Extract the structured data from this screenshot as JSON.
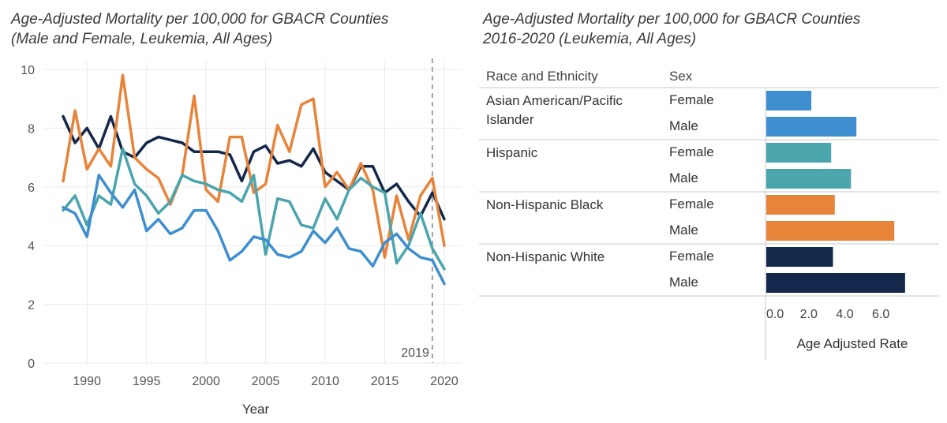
{
  "left_title": {
    "line1": "Age-Adjusted Mortality per 100,000 for GBACR Counties",
    "line2": "(Male and Female, Leukemia, All Ages)"
  },
  "right_title": {
    "line1": "Age-Adjusted Mortality per 100,000 for GBACR Counties",
    "line2": "2016-2020 (Leukemia, All Ages)"
  },
  "colors": {
    "navy": "#14284b",
    "orange": "#e8843a",
    "teal": "#4aa5ac",
    "blue": "#3e8ed0",
    "grid": "#eaeaea",
    "refline": "#a3a3a3"
  },
  "chart_data": [
    {
      "type": "line",
      "xlabel": "Year",
      "ylabel": "",
      "xlim": [
        1986,
        2021
      ],
      "ylim": [
        0,
        10
      ],
      "x_ticks": [
        1990,
        1995,
        2000,
        2005,
        2010,
        2015,
        2020
      ],
      "y_ticks": [
        0,
        2,
        4,
        6,
        8,
        10
      ],
      "reference_line": {
        "x": 2019,
        "label": "2019"
      },
      "x": [
        1988,
        1989,
        1990,
        1991,
        1992,
        1993,
        1994,
        1995,
        1996,
        1997,
        1998,
        1999,
        2000,
        2001,
        2002,
        2003,
        2004,
        2005,
        2006,
        2007,
        2008,
        2009,
        2010,
        2011,
        2012,
        2013,
        2014,
        2015,
        2016,
        2017,
        2018,
        2019,
        2020
      ],
      "series": [
        {
          "name": "navy",
          "color": "#14284b",
          "values": [
            8.4,
            7.5,
            8.0,
            7.3,
            8.4,
            7.2,
            7.0,
            7.5,
            7.7,
            7.6,
            7.5,
            7.2,
            7.2,
            7.2,
            7.1,
            6.2,
            7.2,
            7.4,
            6.8,
            6.9,
            6.7,
            7.3,
            6.5,
            6.2,
            5.9,
            6.7,
            6.7,
            5.8,
            6.1,
            5.5,
            5.0,
            5.8,
            4.9
          ]
        },
        {
          "name": "orange",
          "color": "#e8843a",
          "values": [
            6.2,
            8.6,
            6.6,
            7.3,
            6.7,
            9.8,
            7.0,
            6.6,
            6.3,
            5.4,
            6.4,
            9.1,
            5.9,
            5.5,
            7.7,
            7.7,
            5.8,
            6.1,
            8.1,
            7.2,
            8.8,
            9.0,
            6.0,
            6.5,
            5.9,
            6.8,
            5.9,
            3.6,
            5.7,
            4.2,
            5.7,
            6.3,
            4.0
          ]
        },
        {
          "name": "teal",
          "color": "#4aa5ac",
          "values": [
            5.2,
            5.7,
            4.7,
            5.7,
            5.4,
            7.3,
            6.1,
            5.7,
            5.1,
            5.5,
            6.4,
            6.2,
            6.1,
            5.9,
            5.8,
            5.5,
            6.4,
            3.7,
            5.6,
            5.5,
            4.7,
            4.6,
            5.6,
            4.9,
            5.9,
            6.3,
            6.0,
            5.8,
            3.4,
            4.0,
            5.1,
            3.9,
            3.2
          ]
        },
        {
          "name": "blue",
          "color": "#3e8ed0",
          "values": [
            5.3,
            5.1,
            4.3,
            6.4,
            5.8,
            5.3,
            5.9,
            4.5,
            4.9,
            4.4,
            4.6,
            5.2,
            5.2,
            4.5,
            3.5,
            3.8,
            4.3,
            4.2,
            3.7,
            3.6,
            3.8,
            4.5,
            4.1,
            4.6,
            3.9,
            3.8,
            3.3,
            4.1,
            4.4,
            3.9,
            3.6,
            3.5,
            2.7
          ]
        }
      ]
    },
    {
      "type": "bar",
      "orientation": "horizontal",
      "xlabel": "Age Adjusted Rate",
      "xlim": [
        0,
        9.5
      ],
      "x_ticks": [
        {
          "value": 0.0,
          "label": "0.0"
        },
        {
          "value": 2.0,
          "label": "2.0"
        },
        {
          "value": 4.0,
          "label": "4.0"
        },
        {
          "value": 6.0,
          "label": "6.0"
        }
      ],
      "columns": {
        "group": "Race and Ethnicity",
        "sex": "Sex"
      },
      "groups": [
        {
          "label_lines": [
            "Asian American/Pacific",
            "Islander"
          ],
          "color": "#3e8ed0",
          "rows": [
            {
              "sex": "Female",
              "value": 2.5
            },
            {
              "sex": "Male",
              "value": 5.0
            }
          ]
        },
        {
          "label_lines": [
            "Hispanic"
          ],
          "color": "#4aa5ac",
          "rows": [
            {
              "sex": "Female",
              "value": 3.6
            },
            {
              "sex": "Male",
              "value": 4.7
            }
          ]
        },
        {
          "label_lines": [
            "Non-Hispanic Black"
          ],
          "color": "#e8843a",
          "rows": [
            {
              "sex": "Female",
              "value": 3.8
            },
            {
              "sex": "Male",
              "value": 7.1
            }
          ]
        },
        {
          "label_lines": [
            "Non-Hispanic White"
          ],
          "color": "#14284b",
          "rows": [
            {
              "sex": "Female",
              "value": 3.7
            },
            {
              "sex": "Male",
              "value": 7.7
            }
          ]
        }
      ]
    }
  ]
}
